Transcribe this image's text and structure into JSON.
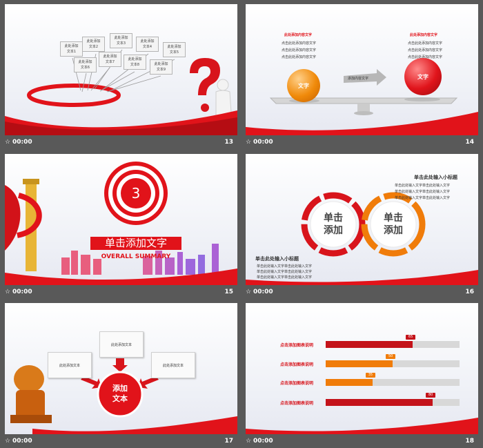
{
  "slides": [
    {
      "number": "13",
      "duration": "00:00",
      "sign_texts": [
        "此处添加\n文本1",
        "此处添加\n文本2",
        "此处添加\n文本3",
        "此处添加\n文本4",
        "此处添加\n文本5",
        "此处添加\n文本6",
        "此处添加\n文本7",
        "此处添加\n文本8",
        "此处添加\n文本9"
      ]
    },
    {
      "number": "14",
      "duration": "00:00",
      "left_heading": "此处添加内容文字",
      "left_lines": [
        "点击此处添加内容文字",
        "点击此处添加内容文字",
        "点击此处添加内容文字"
      ],
      "right_heading": "此处添加内容文字",
      "right_lines": [
        "点击此处添加内容文字",
        "点击此处添加内容文字",
        "点击此处添加内容文字"
      ],
      "left_ball": "文字",
      "right_ball": "文字",
      "arrow_text": "添加内容文字"
    },
    {
      "number": "15",
      "duration": "00:00",
      "target_number": "3",
      "title": "单击添加文字",
      "subtitle": "OVERALL SUMMARY"
    },
    {
      "number": "16",
      "duration": "00:00",
      "top_heading": "单击此处输入小标题",
      "top_lines": [
        "单击此处输入文字单击此处输入文字",
        "单击此处输入文字单击此处输入文字",
        "单击此处输入文字单击此处输入文字"
      ],
      "bottom_heading": "单击此处输入小标题",
      "bottom_lines": [
        "单击此处输入文字单击此处输入文字",
        "单击此处输入文字单击此处输入文字",
        "单击此处输入文字单击此处输入文字"
      ],
      "left_ring_line1": "单击",
      "left_ring_line2": "添加",
      "right_ring_line1": "单击",
      "right_ring_line2": "添加"
    },
    {
      "number": "17",
      "duration": "00:00",
      "boxes": [
        "此处添加文本",
        "此处添加文本",
        "此处添加文本"
      ],
      "center_line1": "添加",
      "center_line2": "文本"
    },
    {
      "number": "18",
      "duration": "00:00",
      "bar_chart": [
        {
          "label": "点击添加图表说明",
          "value": 65,
          "color": "#c4131a"
        },
        {
          "label": "点击添加图表说明",
          "value": 50,
          "color": "#f07c0a"
        },
        {
          "label": "点击添加图表说明",
          "value": 35,
          "color": "#f07c0a"
        },
        {
          "label": "点击添加图表说明",
          "value": 80,
          "color": "#c4131a"
        }
      ]
    }
  ],
  "colors": {
    "accent_red": "#e1131a",
    "accent_orange": "#f07c0a",
    "background": "#595959"
  }
}
